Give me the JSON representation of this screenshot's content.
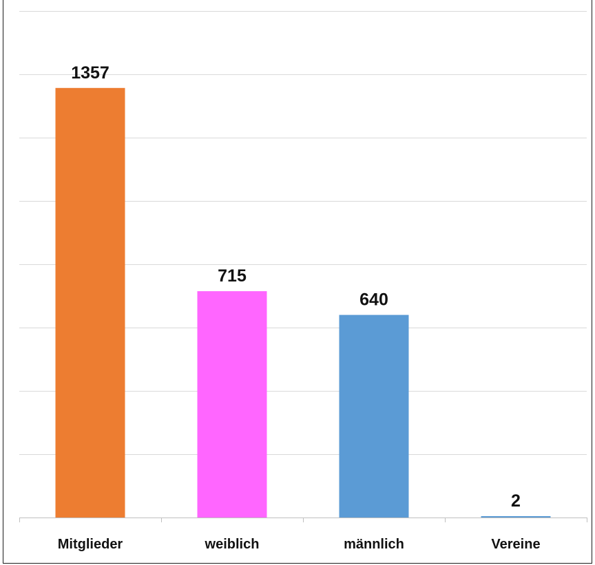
{
  "chart_data": {
    "type": "bar",
    "categories": [
      "Mitglieder",
      "weiblich",
      "männlich",
      "Vereine"
    ],
    "values": [
      1357,
      715,
      640,
      2
    ],
    "bar_colors": [
      "#ED7D31",
      "#FF66FF",
      "#5B9BD5",
      "#5B9BD5"
    ],
    "data_labels": [
      "1357",
      "715",
      "640",
      "2"
    ],
    "ylim": [
      0,
      1600
    ],
    "grid": true,
    "legend": "none",
    "title": "",
    "xlabel": "",
    "ylabel": ""
  }
}
